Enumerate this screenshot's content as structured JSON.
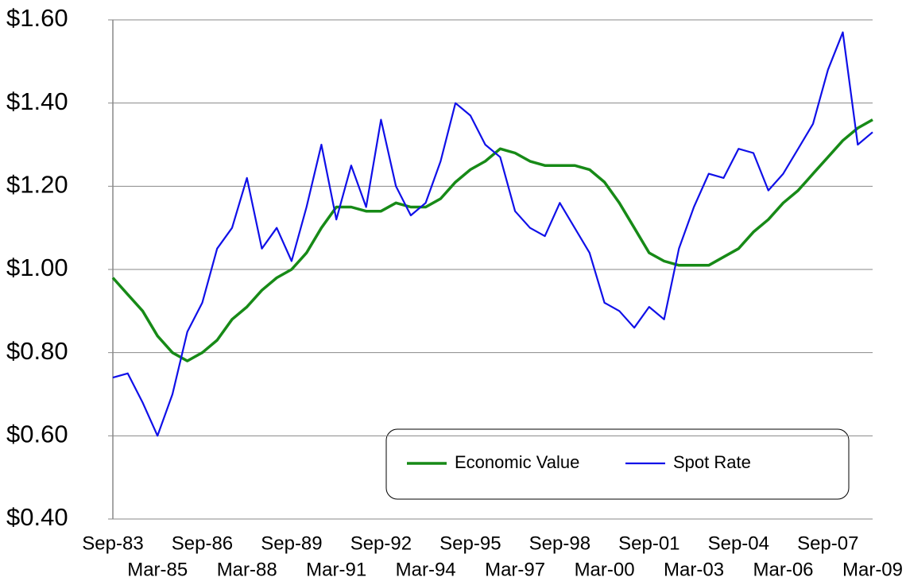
{
  "chart_data": {
    "type": "line",
    "categories": [
      "Sep-83",
      null,
      null,
      "Mar-85",
      null,
      null,
      "Sep-86",
      null,
      null,
      "Mar-88",
      null,
      null,
      "Sep-89",
      null,
      null,
      "Mar-91",
      null,
      null,
      "Sep-92",
      null,
      null,
      "Mar-94",
      null,
      null,
      "Sep-95",
      null,
      null,
      "Mar-97",
      null,
      null,
      "Sep-98",
      null,
      null,
      "Mar-00",
      null,
      null,
      "Sep-01",
      null,
      null,
      "Mar-03",
      null,
      null,
      "Sep-04",
      null,
      null,
      "Mar-06",
      null,
      null,
      "Sep-07",
      null,
      null,
      "Mar-09"
    ],
    "series": [
      {
        "name": "Economic Value",
        "color": "#178a17",
        "values": [
          0.98,
          0.94,
          0.9,
          0.84,
          0.8,
          0.78,
          0.8,
          0.83,
          0.88,
          0.91,
          0.95,
          0.98,
          1.0,
          1.04,
          1.1,
          1.15,
          1.15,
          1.14,
          1.14,
          1.16,
          1.15,
          1.15,
          1.17,
          1.21,
          1.24,
          1.26,
          1.29,
          1.28,
          1.26,
          1.25,
          1.25,
          1.25,
          1.24,
          1.21,
          1.16,
          1.1,
          1.04,
          1.02,
          1.01,
          1.01,
          1.01,
          1.03,
          1.05,
          1.09,
          1.12,
          1.16,
          1.19,
          1.23,
          1.27,
          1.31,
          1.34,
          1.36
        ]
      },
      {
        "name": "Spot Rate",
        "color": "#1010e8",
        "values": [
          0.74,
          0.75,
          0.68,
          0.6,
          0.7,
          0.85,
          0.92,
          1.05,
          1.1,
          1.22,
          1.05,
          1.1,
          1.02,
          1.15,
          1.3,
          1.12,
          1.25,
          1.15,
          1.36,
          1.2,
          1.13,
          1.16,
          1.26,
          1.4,
          1.37,
          1.3,
          1.27,
          1.14,
          1.1,
          1.08,
          1.16,
          1.1,
          1.04,
          0.92,
          0.9,
          0.86,
          0.91,
          0.88,
          1.05,
          1.15,
          1.23,
          1.22,
          1.29,
          1.28,
          1.19,
          1.23,
          1.29,
          1.35,
          1.48,
          1.57,
          1.3,
          1.33
        ]
      }
    ],
    "ylim": [
      0.4,
      1.6
    ],
    "yticks": [
      {
        "value": 0.4,
        "label": "$0.40"
      },
      {
        "value": 0.6,
        "label": "$0.60"
      },
      {
        "value": 0.8,
        "label": "$0.80"
      },
      {
        "value": 1.0,
        "label": "$1.00"
      },
      {
        "value": 1.2,
        "label": "$1.20"
      },
      {
        "value": 1.4,
        "label": "$1.40"
      },
      {
        "value": 1.6,
        "label": "$1.60"
      }
    ],
    "grid": true
  }
}
